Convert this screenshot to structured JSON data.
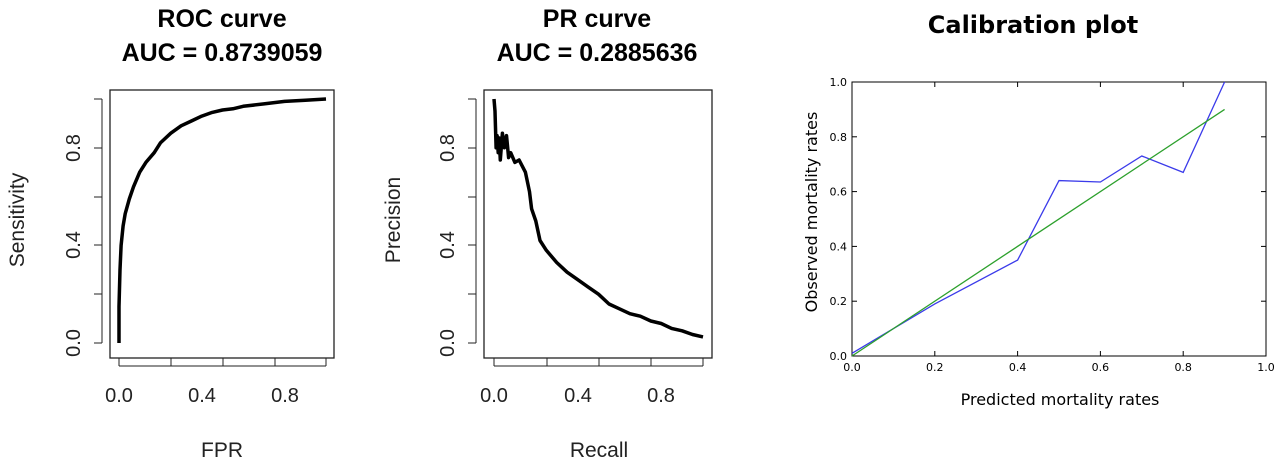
{
  "chart_data": [
    {
      "type": "line",
      "title": "ROC curve",
      "subtitle": "AUC = 0.8739059",
      "xlabel": "FPR",
      "ylabel": "Sensitivity",
      "xlim": [
        0,
        1
      ],
      "ylim": [
        0,
        1
      ],
      "xticks": [
        "0.0",
        "0.4",
        "0.8"
      ],
      "yticks": [
        "0.0",
        "0.4",
        "0.8"
      ],
      "grid": false,
      "color": "#000000",
      "series": [
        {
          "x": [
            0,
            0,
            0.005,
            0.01,
            0.02,
            0.03,
            0.05,
            0.07,
            0.1,
            0.13,
            0.17,
            0.2,
            0.25,
            0.3,
            0.35,
            0.4,
            0.45,
            0.5,
            0.55,
            0.6,
            0.7,
            0.8,
            0.9,
            1.0
          ],
          "y": [
            0,
            0.15,
            0.3,
            0.4,
            0.48,
            0.53,
            0.59,
            0.64,
            0.7,
            0.74,
            0.78,
            0.82,
            0.86,
            0.89,
            0.91,
            0.93,
            0.945,
            0.955,
            0.96,
            0.97,
            0.98,
            0.99,
            0.995,
            1.0
          ]
        }
      ]
    },
    {
      "type": "line",
      "title": "PR curve",
      "subtitle": "AUC = 0.2885636",
      "xlabel": "Recall",
      "ylabel": "Precision",
      "xlim": [
        0,
        1
      ],
      "ylim": [
        0,
        1
      ],
      "xticks": [
        "0.0",
        "0.4",
        "0.8"
      ],
      "yticks": [
        "0.0",
        "0.4",
        "0.8"
      ],
      "grid": false,
      "color": "#000000",
      "series": [
        {
          "x": [
            0,
            0.005,
            0.01,
            0.015,
            0.02,
            0.025,
            0.03,
            0.04,
            0.05,
            0.06,
            0.07,
            0.08,
            0.1,
            0.12,
            0.15,
            0.17,
            0.18,
            0.2,
            0.22,
            0.25,
            0.3,
            0.35,
            0.4,
            0.45,
            0.5,
            0.55,
            0.6,
            0.65,
            0.7,
            0.75,
            0.8,
            0.85,
            0.9,
            0.95,
            1.0
          ],
          "y": [
            1.0,
            0.95,
            0.8,
            0.85,
            0.78,
            0.84,
            0.75,
            0.86,
            0.8,
            0.85,
            0.76,
            0.78,
            0.74,
            0.75,
            0.7,
            0.62,
            0.55,
            0.5,
            0.42,
            0.38,
            0.33,
            0.29,
            0.26,
            0.23,
            0.2,
            0.16,
            0.14,
            0.12,
            0.11,
            0.09,
            0.08,
            0.06,
            0.05,
            0.035,
            0.025
          ]
        }
      ]
    },
    {
      "type": "line",
      "title": "Calibration plot",
      "xlabel": "Predicted mortality rates",
      "ylabel": "Observed mortality rates",
      "xlim": [
        0,
        1
      ],
      "ylim": [
        0,
        1
      ],
      "xticks": [
        "0.0",
        "0.2",
        "0.4",
        "0.6",
        "0.8",
        "1.0"
      ],
      "yticks": [
        "0.0",
        "0.2",
        "0.4",
        "0.6",
        "0.8",
        "1.0"
      ],
      "grid": false,
      "series": [
        {
          "color": "#3b3bea",
          "x": [
            0.0,
            0.2,
            0.4,
            0.5,
            0.6,
            0.7,
            0.8,
            0.9
          ],
          "y": [
            0.01,
            0.19,
            0.35,
            0.64,
            0.635,
            0.73,
            0.67,
            1.0
          ]
        },
        {
          "color": "#2ca02c",
          "x": [
            0.0,
            0.9
          ],
          "y": [
            0.0,
            0.9
          ]
        }
      ]
    }
  ]
}
